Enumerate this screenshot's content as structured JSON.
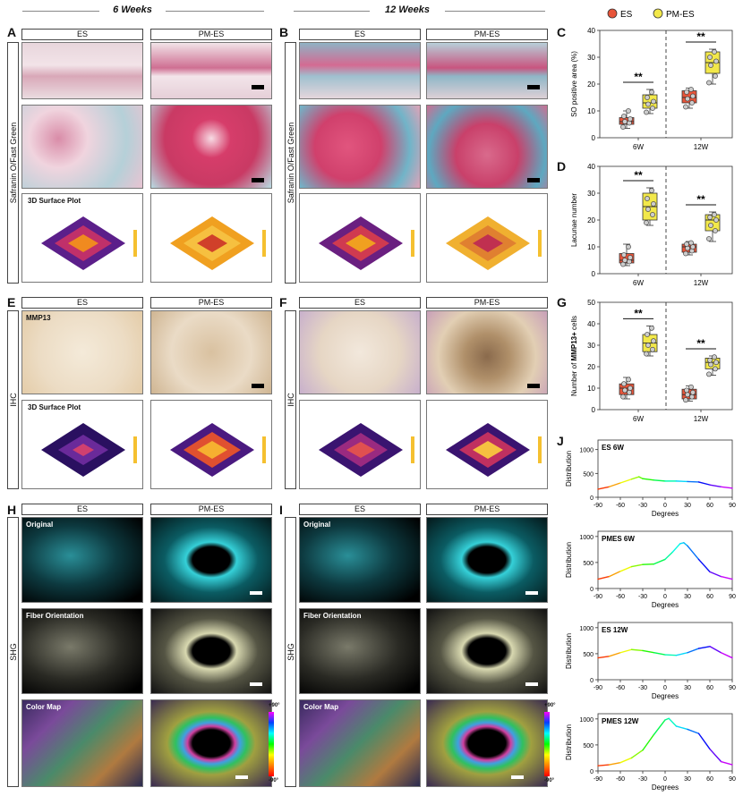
{
  "headers": {
    "left": "6 Weeks",
    "right": "12 Weeks"
  },
  "panels": {
    "A": "A",
    "B": "B",
    "C": "C",
    "D": "D",
    "E": "E",
    "F": "F",
    "G": "G",
    "H": "H",
    "I": "I",
    "J": "J"
  },
  "columns": {
    "es": "ES",
    "pmes": "PM-ES"
  },
  "rows": {
    "safranin": "Safranin O/Fast Green",
    "ihc": "IHC",
    "shg": "SHG"
  },
  "labels": {
    "surface_plot": "3D Surface Plot",
    "mmp13": "MMP13",
    "original": "Original",
    "fiber_orientation": "Fiber Orientation",
    "color_map": "Color Map",
    "cm_top": "+90°",
    "cm_bottom": "-90°"
  },
  "legend": {
    "es": "ES",
    "pmes": "PM-ES",
    "es_color": "#e8553a",
    "pmes_color": "#f2e84a"
  },
  "sig": "**",
  "chart_data": [
    {
      "panel": "C",
      "type": "box",
      "ylabel": "SO positive area (%)",
      "ylim": [
        0,
        40
      ],
      "yticks": [
        0,
        10,
        20,
        30,
        40
      ],
      "groups": [
        "6W",
        "12W"
      ],
      "series": [
        {
          "name": "ES",
          "group": "6W",
          "min": 3.5,
          "q1": 5,
          "median": 6,
          "q3": 7.5,
          "max": 10,
          "points": [
            4,
            5.5,
            6,
            7,
            8,
            10
          ]
        },
        {
          "name": "PM-ES",
          "group": "6W",
          "min": 9,
          "q1": 11,
          "median": 13,
          "q3": 16,
          "max": 18,
          "points": [
            9.5,
            11,
            12.5,
            13.5,
            15,
            17
          ]
        },
        {
          "name": "ES",
          "group": "12W",
          "min": 11,
          "q1": 13,
          "median": 15,
          "q3": 17.5,
          "max": 18.5,
          "points": [
            11.5,
            13,
            14.5,
            15.5,
            17,
            18
          ]
        },
        {
          "name": "PM-ES",
          "group": "12W",
          "min": 20,
          "q1": 24,
          "median": 28,
          "q3": 32,
          "max": 33,
          "points": [
            20.5,
            23,
            27,
            28.5,
            30,
            32
          ]
        }
      ]
    },
    {
      "panel": "D",
      "type": "box",
      "ylabel": "Lacunae number",
      "ylim": [
        0,
        40
      ],
      "yticks": [
        0,
        10,
        20,
        30,
        40
      ],
      "groups": [
        "6W",
        "12W"
      ],
      "series": [
        {
          "name": "ES",
          "group": "6W",
          "min": 3,
          "q1": 4,
          "median": 5,
          "q3": 7.5,
          "max": 11,
          "points": [
            3.5,
            4.5,
            5,
            6,
            7,
            10
          ]
        },
        {
          "name": "PM-ES",
          "group": "6W",
          "min": 18,
          "q1": 20,
          "median": 25,
          "q3": 30,
          "max": 32,
          "points": [
            19,
            22,
            24,
            26,
            28,
            31
          ]
        },
        {
          "name": "ES",
          "group": "12W",
          "min": 7,
          "q1": 8,
          "median": 10,
          "q3": 11,
          "max": 12,
          "points": [
            7.5,
            8.5,
            9.5,
            10,
            11,
            11.5
          ]
        },
        {
          "name": "PM-ES",
          "group": "12W",
          "min": 12,
          "q1": 16,
          "median": 20,
          "q3": 22,
          "max": 23,
          "points": [
            13,
            16,
            18,
            20,
            21,
            22
          ]
        }
      ]
    },
    {
      "panel": "G",
      "type": "box",
      "ylabel_prefix": "Number of ",
      "ylabel_bold": "MMP13+",
      "ylabel_suffix": " cells",
      "ylim": [
        0,
        50
      ],
      "yticks": [
        0,
        10,
        20,
        30,
        40,
        50
      ],
      "groups": [
        "6W",
        "12W"
      ],
      "series": [
        {
          "name": "ES",
          "group": "6W",
          "min": 5,
          "q1": 7,
          "median": 10,
          "q3": 12,
          "max": 15,
          "points": [
            6,
            8,
            9,
            10,
            12,
            14
          ]
        },
        {
          "name": "PM-ES",
          "group": "6W",
          "min": 25,
          "q1": 27,
          "median": 31,
          "q3": 35,
          "max": 39,
          "points": [
            26,
            28,
            30,
            32,
            35,
            38
          ]
        },
        {
          "name": "ES",
          "group": "12W",
          "min": 4,
          "q1": 5,
          "median": 7,
          "q3": 9.5,
          "max": 11,
          "points": [
            4.5,
            6,
            7,
            8,
            9,
            10.5
          ]
        },
        {
          "name": "PM-ES",
          "group": "12W",
          "min": 16,
          "q1": 19,
          "median": 22,
          "q3": 24,
          "max": 25,
          "points": [
            16.5,
            19,
            21,
            22,
            23,
            24.5
          ]
        }
      ]
    },
    {
      "panel": "J",
      "type": "line",
      "title": "ES 6W",
      "xlabel": "Degrees",
      "ylabel": "Distribution",
      "xlim": [
        -90,
        90
      ],
      "ylim": [
        0,
        1200
      ],
      "xticks": [
        -90,
        -60,
        -30,
        0,
        30,
        60,
        90
      ],
      "yticks": [
        0,
        500,
        1000
      ],
      "x": [
        -90,
        -75,
        -60,
        -45,
        -35,
        -30,
        -15,
        0,
        15,
        30,
        45,
        60,
        75,
        90
      ],
      "y": [
        170,
        220,
        300,
        380,
        430,
        390,
        360,
        340,
        340,
        330,
        320,
        260,
        220,
        190
      ]
    },
    {
      "panel": "J",
      "type": "line",
      "title": "PMES 6W",
      "xlabel": "Degrees",
      "ylabel": "Distribution",
      "xlim": [
        -90,
        90
      ],
      "ylim": [
        0,
        1100
      ],
      "xticks": [
        -90,
        -60,
        -30,
        0,
        30,
        60,
        90
      ],
      "yticks": [
        0,
        500,
        1000
      ],
      "x": [
        -90,
        -75,
        -60,
        -45,
        -30,
        -15,
        0,
        10,
        20,
        25,
        30,
        45,
        60,
        75,
        90
      ],
      "y": [
        180,
        230,
        330,
        420,
        460,
        470,
        560,
        700,
        860,
        880,
        820,
        560,
        320,
        230,
        180
      ]
    },
    {
      "panel": "J",
      "type": "line",
      "title": "ES 12W",
      "xlabel": "Degrees",
      "ylabel": "Distribution",
      "xlim": [
        -90,
        90
      ],
      "ylim": [
        0,
        1100
      ],
      "xticks": [
        -90,
        -60,
        -30,
        0,
        30,
        60,
        90
      ],
      "yticks": [
        0,
        500,
        1000
      ],
      "x": [
        -90,
        -75,
        -60,
        -45,
        -30,
        -15,
        0,
        15,
        30,
        45,
        60,
        75,
        90
      ],
      "y": [
        420,
        450,
        520,
        580,
        560,
        520,
        480,
        470,
        520,
        600,
        640,
        520,
        420
      ]
    },
    {
      "panel": "J",
      "type": "line",
      "title": "PMES 12W",
      "xlabel": "Degrees",
      "ylabel": "Distribution",
      "xlim": [
        -90,
        90
      ],
      "ylim": [
        0,
        1100
      ],
      "xticks": [
        -90,
        -60,
        -30,
        0,
        30,
        60,
        90
      ],
      "yticks": [
        0,
        500,
        1000
      ],
      "x": [
        -90,
        -75,
        -60,
        -45,
        -30,
        -15,
        0,
        5,
        15,
        30,
        45,
        60,
        75,
        90
      ],
      "y": [
        100,
        120,
        160,
        250,
        400,
        700,
        980,
        1010,
        860,
        800,
        720,
        420,
        180,
        120
      ]
    }
  ]
}
